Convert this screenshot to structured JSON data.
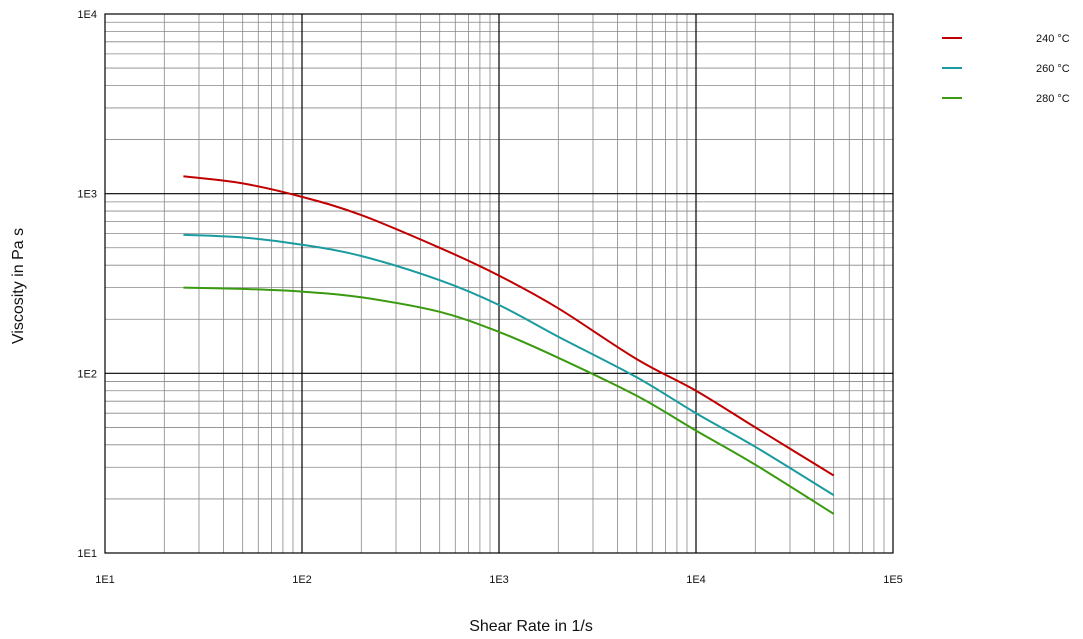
{
  "chart_data": {
    "type": "line",
    "title": "",
    "xlabel": "Shear Rate in 1/s",
    "ylabel": "Viscosity in Pa s",
    "xscale": "log",
    "yscale": "log",
    "xlim": [
      10,
      100000
    ],
    "ylim": [
      10,
      10000
    ],
    "grid": true,
    "legend_position": "top-right",
    "x_tick_labels": [
      "1E1",
      "1E2",
      "1E3",
      "1E4",
      "1E5"
    ],
    "y_tick_labels": [
      "1E1",
      "1E2",
      "1E3",
      "1E4"
    ],
    "x": [
      25,
      50,
      100,
      200,
      500,
      1000,
      2000,
      5000,
      10000,
      20000,
      50000
    ],
    "series": [
      {
        "name": "240 °C",
        "color": "#c00000",
        "values": [
          1250,
          1140,
          960,
          760,
          500,
          350,
          230,
          120,
          80,
          50,
          27
        ]
      },
      {
        "name": "260 °C",
        "color": "#1a9ba0",
        "values": [
          590,
          570,
          520,
          450,
          330,
          240,
          160,
          95,
          60,
          39,
          21
        ]
      },
      {
        "name": "280 °C",
        "color": "#3a9a10",
        "values": [
          300,
          295,
          285,
          265,
          220,
          170,
          122,
          75,
          48,
          31,
          16.5
        ]
      }
    ]
  }
}
